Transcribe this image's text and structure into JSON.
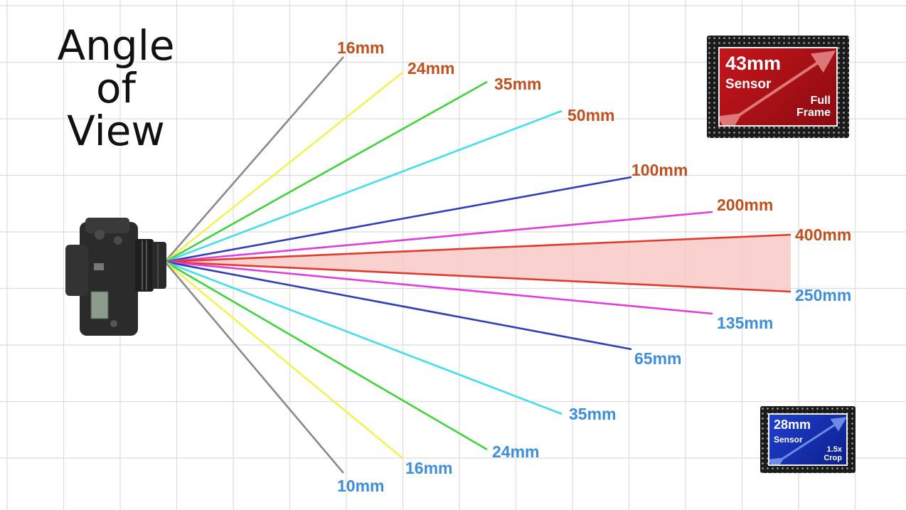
{
  "title_lines": [
    "Angle",
    "of",
    "View"
  ],
  "colors": {
    "full_frame_label": "#c0501e",
    "crop_label": "#3d8fd9",
    "grid": "#dcdcdc",
    "highlight_fill": "#f8c9c6"
  },
  "camera_icon": "dslr-camera-top-view",
  "full_frame_lines": [
    {
      "label": "16mm",
      "color": "#8a8a8a"
    },
    {
      "label": "24mm",
      "color": "#f4f253"
    },
    {
      "label": "35mm",
      "color": "#3fd43a"
    },
    {
      "label": "50mm",
      "color": "#3ee0ec"
    },
    {
      "label": "100mm",
      "color": "#2f3fb8"
    },
    {
      "label": "200mm",
      "color": "#e23be0"
    },
    {
      "label": "400mm",
      "color": "#e23b2e"
    }
  ],
  "crop_lines": [
    {
      "label": "250mm",
      "color": "#e23b2e"
    },
    {
      "label": "135mm",
      "color": "#e23be0"
    },
    {
      "label": "65mm",
      "color": "#2f3fb8"
    },
    {
      "label": "35mm",
      "color": "#3ee0ec"
    },
    {
      "label": "24mm",
      "color": "#3fd43a"
    },
    {
      "label": "16mm",
      "color": "#f4f253"
    },
    {
      "label": "10mm",
      "color": "#8a8a8a"
    }
  ],
  "sensors": {
    "full_frame": {
      "size": "43mm",
      "word": "Sensor",
      "type_lines": [
        "Full",
        "Frame"
      ]
    },
    "crop": {
      "size": "28mm",
      "word": "Sensor",
      "type_lines": [
        "1.5x",
        "Crop"
      ]
    }
  }
}
